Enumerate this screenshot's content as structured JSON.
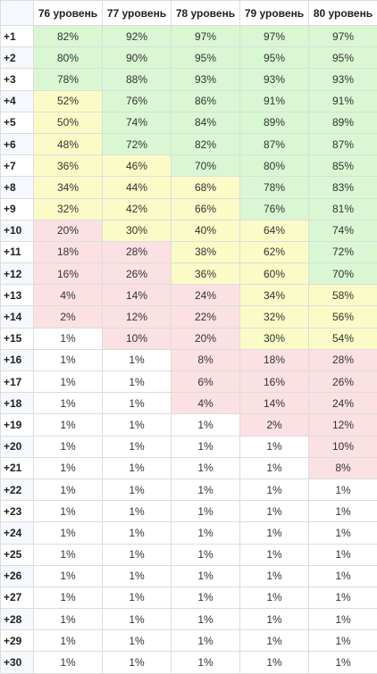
{
  "headers": [
    "",
    "76 уровень",
    "77 уровень",
    "78 уровень",
    "79 уровень",
    "80 уровень"
  ],
  "colors": {
    "green": "#d9f7d3",
    "yellow": "#fbfbc8",
    "red": "#fbe1e3",
    "white": "#ffffff"
  },
  "rows": [
    {
      "label": "+1",
      "cells": [
        {
          "v": "82%",
          "c": "g"
        },
        {
          "v": "92%",
          "c": "g"
        },
        {
          "v": "97%",
          "c": "g"
        },
        {
          "v": "97%",
          "c": "g"
        },
        {
          "v": "97%",
          "c": "g"
        }
      ]
    },
    {
      "label": "+2",
      "cells": [
        {
          "v": "80%",
          "c": "g"
        },
        {
          "v": "90%",
          "c": "g"
        },
        {
          "v": "95%",
          "c": "g"
        },
        {
          "v": "95%",
          "c": "g"
        },
        {
          "v": "95%",
          "c": "g"
        }
      ]
    },
    {
      "label": "+3",
      "cells": [
        {
          "v": "78%",
          "c": "g"
        },
        {
          "v": "88%",
          "c": "g"
        },
        {
          "v": "93%",
          "c": "g"
        },
        {
          "v": "93%",
          "c": "g"
        },
        {
          "v": "93%",
          "c": "g"
        }
      ]
    },
    {
      "label": "+4",
      "cells": [
        {
          "v": "52%",
          "c": "y"
        },
        {
          "v": "76%",
          "c": "g"
        },
        {
          "v": "86%",
          "c": "g"
        },
        {
          "v": "91%",
          "c": "g"
        },
        {
          "v": "91%",
          "c": "g"
        }
      ]
    },
    {
      "label": "+5",
      "cells": [
        {
          "v": "50%",
          "c": "y"
        },
        {
          "v": "74%",
          "c": "g"
        },
        {
          "v": "84%",
          "c": "g"
        },
        {
          "v": "89%",
          "c": "g"
        },
        {
          "v": "89%",
          "c": "g"
        }
      ]
    },
    {
      "label": "+6",
      "cells": [
        {
          "v": "48%",
          "c": "y"
        },
        {
          "v": "72%",
          "c": "g"
        },
        {
          "v": "82%",
          "c": "g"
        },
        {
          "v": "87%",
          "c": "g"
        },
        {
          "v": "87%",
          "c": "g"
        }
      ]
    },
    {
      "label": "+7",
      "cells": [
        {
          "v": "36%",
          "c": "y"
        },
        {
          "v": "46%",
          "c": "y"
        },
        {
          "v": "70%",
          "c": "g"
        },
        {
          "v": "80%",
          "c": "g"
        },
        {
          "v": "85%",
          "c": "g"
        }
      ]
    },
    {
      "label": "+8",
      "cells": [
        {
          "v": "34%",
          "c": "y"
        },
        {
          "v": "44%",
          "c": "y"
        },
        {
          "v": "68%",
          "c": "y"
        },
        {
          "v": "78%",
          "c": "g"
        },
        {
          "v": "83%",
          "c": "g"
        }
      ]
    },
    {
      "label": "+9",
      "cells": [
        {
          "v": "32%",
          "c": "y"
        },
        {
          "v": "42%",
          "c": "y"
        },
        {
          "v": "66%",
          "c": "y"
        },
        {
          "v": "76%",
          "c": "g"
        },
        {
          "v": "81%",
          "c": "g"
        }
      ]
    },
    {
      "label": "+10",
      "cells": [
        {
          "v": "20%",
          "c": "r"
        },
        {
          "v": "30%",
          "c": "y"
        },
        {
          "v": "40%",
          "c": "y"
        },
        {
          "v": "64%",
          "c": "y"
        },
        {
          "v": "74%",
          "c": "g"
        }
      ]
    },
    {
      "label": "+11",
      "cells": [
        {
          "v": "18%",
          "c": "r"
        },
        {
          "v": "28%",
          "c": "r"
        },
        {
          "v": "38%",
          "c": "y"
        },
        {
          "v": "62%",
          "c": "y"
        },
        {
          "v": "72%",
          "c": "g"
        }
      ]
    },
    {
      "label": "+12",
      "cells": [
        {
          "v": "16%",
          "c": "r"
        },
        {
          "v": "26%",
          "c": "r"
        },
        {
          "v": "36%",
          "c": "y"
        },
        {
          "v": "60%",
          "c": "y"
        },
        {
          "v": "70%",
          "c": "g"
        }
      ]
    },
    {
      "label": "+13",
      "cells": [
        {
          "v": "4%",
          "c": "r"
        },
        {
          "v": "14%",
          "c": "r"
        },
        {
          "v": "24%",
          "c": "r"
        },
        {
          "v": "34%",
          "c": "y"
        },
        {
          "v": "58%",
          "c": "y"
        }
      ]
    },
    {
      "label": "+14",
      "cells": [
        {
          "v": "2%",
          "c": "r"
        },
        {
          "v": "12%",
          "c": "r"
        },
        {
          "v": "22%",
          "c": "r"
        },
        {
          "v": "32%",
          "c": "y"
        },
        {
          "v": "56%",
          "c": "y"
        }
      ]
    },
    {
      "label": "+15",
      "cells": [
        {
          "v": "1%",
          "c": "w"
        },
        {
          "v": "10%",
          "c": "r"
        },
        {
          "v": "20%",
          "c": "r"
        },
        {
          "v": "30%",
          "c": "y"
        },
        {
          "v": "54%",
          "c": "y"
        }
      ]
    },
    {
      "label": "+16",
      "cells": [
        {
          "v": "1%",
          "c": "w"
        },
        {
          "v": "1%",
          "c": "w"
        },
        {
          "v": "8%",
          "c": "r"
        },
        {
          "v": "18%",
          "c": "r"
        },
        {
          "v": "28%",
          "c": "r"
        }
      ]
    },
    {
      "label": "+17",
      "cells": [
        {
          "v": "1%",
          "c": "w"
        },
        {
          "v": "1%",
          "c": "w"
        },
        {
          "v": "6%",
          "c": "r"
        },
        {
          "v": "16%",
          "c": "r"
        },
        {
          "v": "26%",
          "c": "r"
        }
      ]
    },
    {
      "label": "+18",
      "cells": [
        {
          "v": "1%",
          "c": "w"
        },
        {
          "v": "1%",
          "c": "w"
        },
        {
          "v": "4%",
          "c": "r"
        },
        {
          "v": "14%",
          "c": "r"
        },
        {
          "v": "24%",
          "c": "r"
        }
      ]
    },
    {
      "label": "+19",
      "cells": [
        {
          "v": "1%",
          "c": "w"
        },
        {
          "v": "1%",
          "c": "w"
        },
        {
          "v": "1%",
          "c": "w"
        },
        {
          "v": "2%",
          "c": "r"
        },
        {
          "v": "12%",
          "c": "r"
        }
      ]
    },
    {
      "label": "+20",
      "cells": [
        {
          "v": "1%",
          "c": "w"
        },
        {
          "v": "1%",
          "c": "w"
        },
        {
          "v": "1%",
          "c": "w"
        },
        {
          "v": "1%",
          "c": "w"
        },
        {
          "v": "10%",
          "c": "r"
        }
      ]
    },
    {
      "label": "+21",
      "cells": [
        {
          "v": "1%",
          "c": "w"
        },
        {
          "v": "1%",
          "c": "w"
        },
        {
          "v": "1%",
          "c": "w"
        },
        {
          "v": "1%",
          "c": "w"
        },
        {
          "v": "8%",
          "c": "r"
        }
      ]
    },
    {
      "label": "+22",
      "cells": [
        {
          "v": "1%",
          "c": "w"
        },
        {
          "v": "1%",
          "c": "w"
        },
        {
          "v": "1%",
          "c": "w"
        },
        {
          "v": "1%",
          "c": "w"
        },
        {
          "v": "1%",
          "c": "w"
        }
      ]
    },
    {
      "label": "+23",
      "cells": [
        {
          "v": "1%",
          "c": "w"
        },
        {
          "v": "1%",
          "c": "w"
        },
        {
          "v": "1%",
          "c": "w"
        },
        {
          "v": "1%",
          "c": "w"
        },
        {
          "v": "1%",
          "c": "w"
        }
      ]
    },
    {
      "label": "+24",
      "cells": [
        {
          "v": "1%",
          "c": "w"
        },
        {
          "v": "1%",
          "c": "w"
        },
        {
          "v": "1%",
          "c": "w"
        },
        {
          "v": "1%",
          "c": "w"
        },
        {
          "v": "1%",
          "c": "w"
        }
      ]
    },
    {
      "label": "+25",
      "cells": [
        {
          "v": "1%",
          "c": "w"
        },
        {
          "v": "1%",
          "c": "w"
        },
        {
          "v": "1%",
          "c": "w"
        },
        {
          "v": "1%",
          "c": "w"
        },
        {
          "v": "1%",
          "c": "w"
        }
      ]
    },
    {
      "label": "+26",
      "cells": [
        {
          "v": "1%",
          "c": "w"
        },
        {
          "v": "1%",
          "c": "w"
        },
        {
          "v": "1%",
          "c": "w"
        },
        {
          "v": "1%",
          "c": "w"
        },
        {
          "v": "1%",
          "c": "w"
        }
      ]
    },
    {
      "label": "+27",
      "cells": [
        {
          "v": "1%",
          "c": "w"
        },
        {
          "v": "1%",
          "c": "w"
        },
        {
          "v": "1%",
          "c": "w"
        },
        {
          "v": "1%",
          "c": "w"
        },
        {
          "v": "1%",
          "c": "w"
        }
      ]
    },
    {
      "label": "+28",
      "cells": [
        {
          "v": "1%",
          "c": "w"
        },
        {
          "v": "1%",
          "c": "w"
        },
        {
          "v": "1%",
          "c": "w"
        },
        {
          "v": "1%",
          "c": "w"
        },
        {
          "v": "1%",
          "c": "w"
        }
      ]
    },
    {
      "label": "+29",
      "cells": [
        {
          "v": "1%",
          "c": "w"
        },
        {
          "v": "1%",
          "c": "w"
        },
        {
          "v": "1%",
          "c": "w"
        },
        {
          "v": "1%",
          "c": "w"
        },
        {
          "v": "1%",
          "c": "w"
        }
      ]
    },
    {
      "label": "+30",
      "cells": [
        {
          "v": "1%",
          "c": "w"
        },
        {
          "v": "1%",
          "c": "w"
        },
        {
          "v": "1%",
          "c": "w"
        },
        {
          "v": "1%",
          "c": "w"
        },
        {
          "v": "1%",
          "c": "w"
        }
      ]
    }
  ]
}
